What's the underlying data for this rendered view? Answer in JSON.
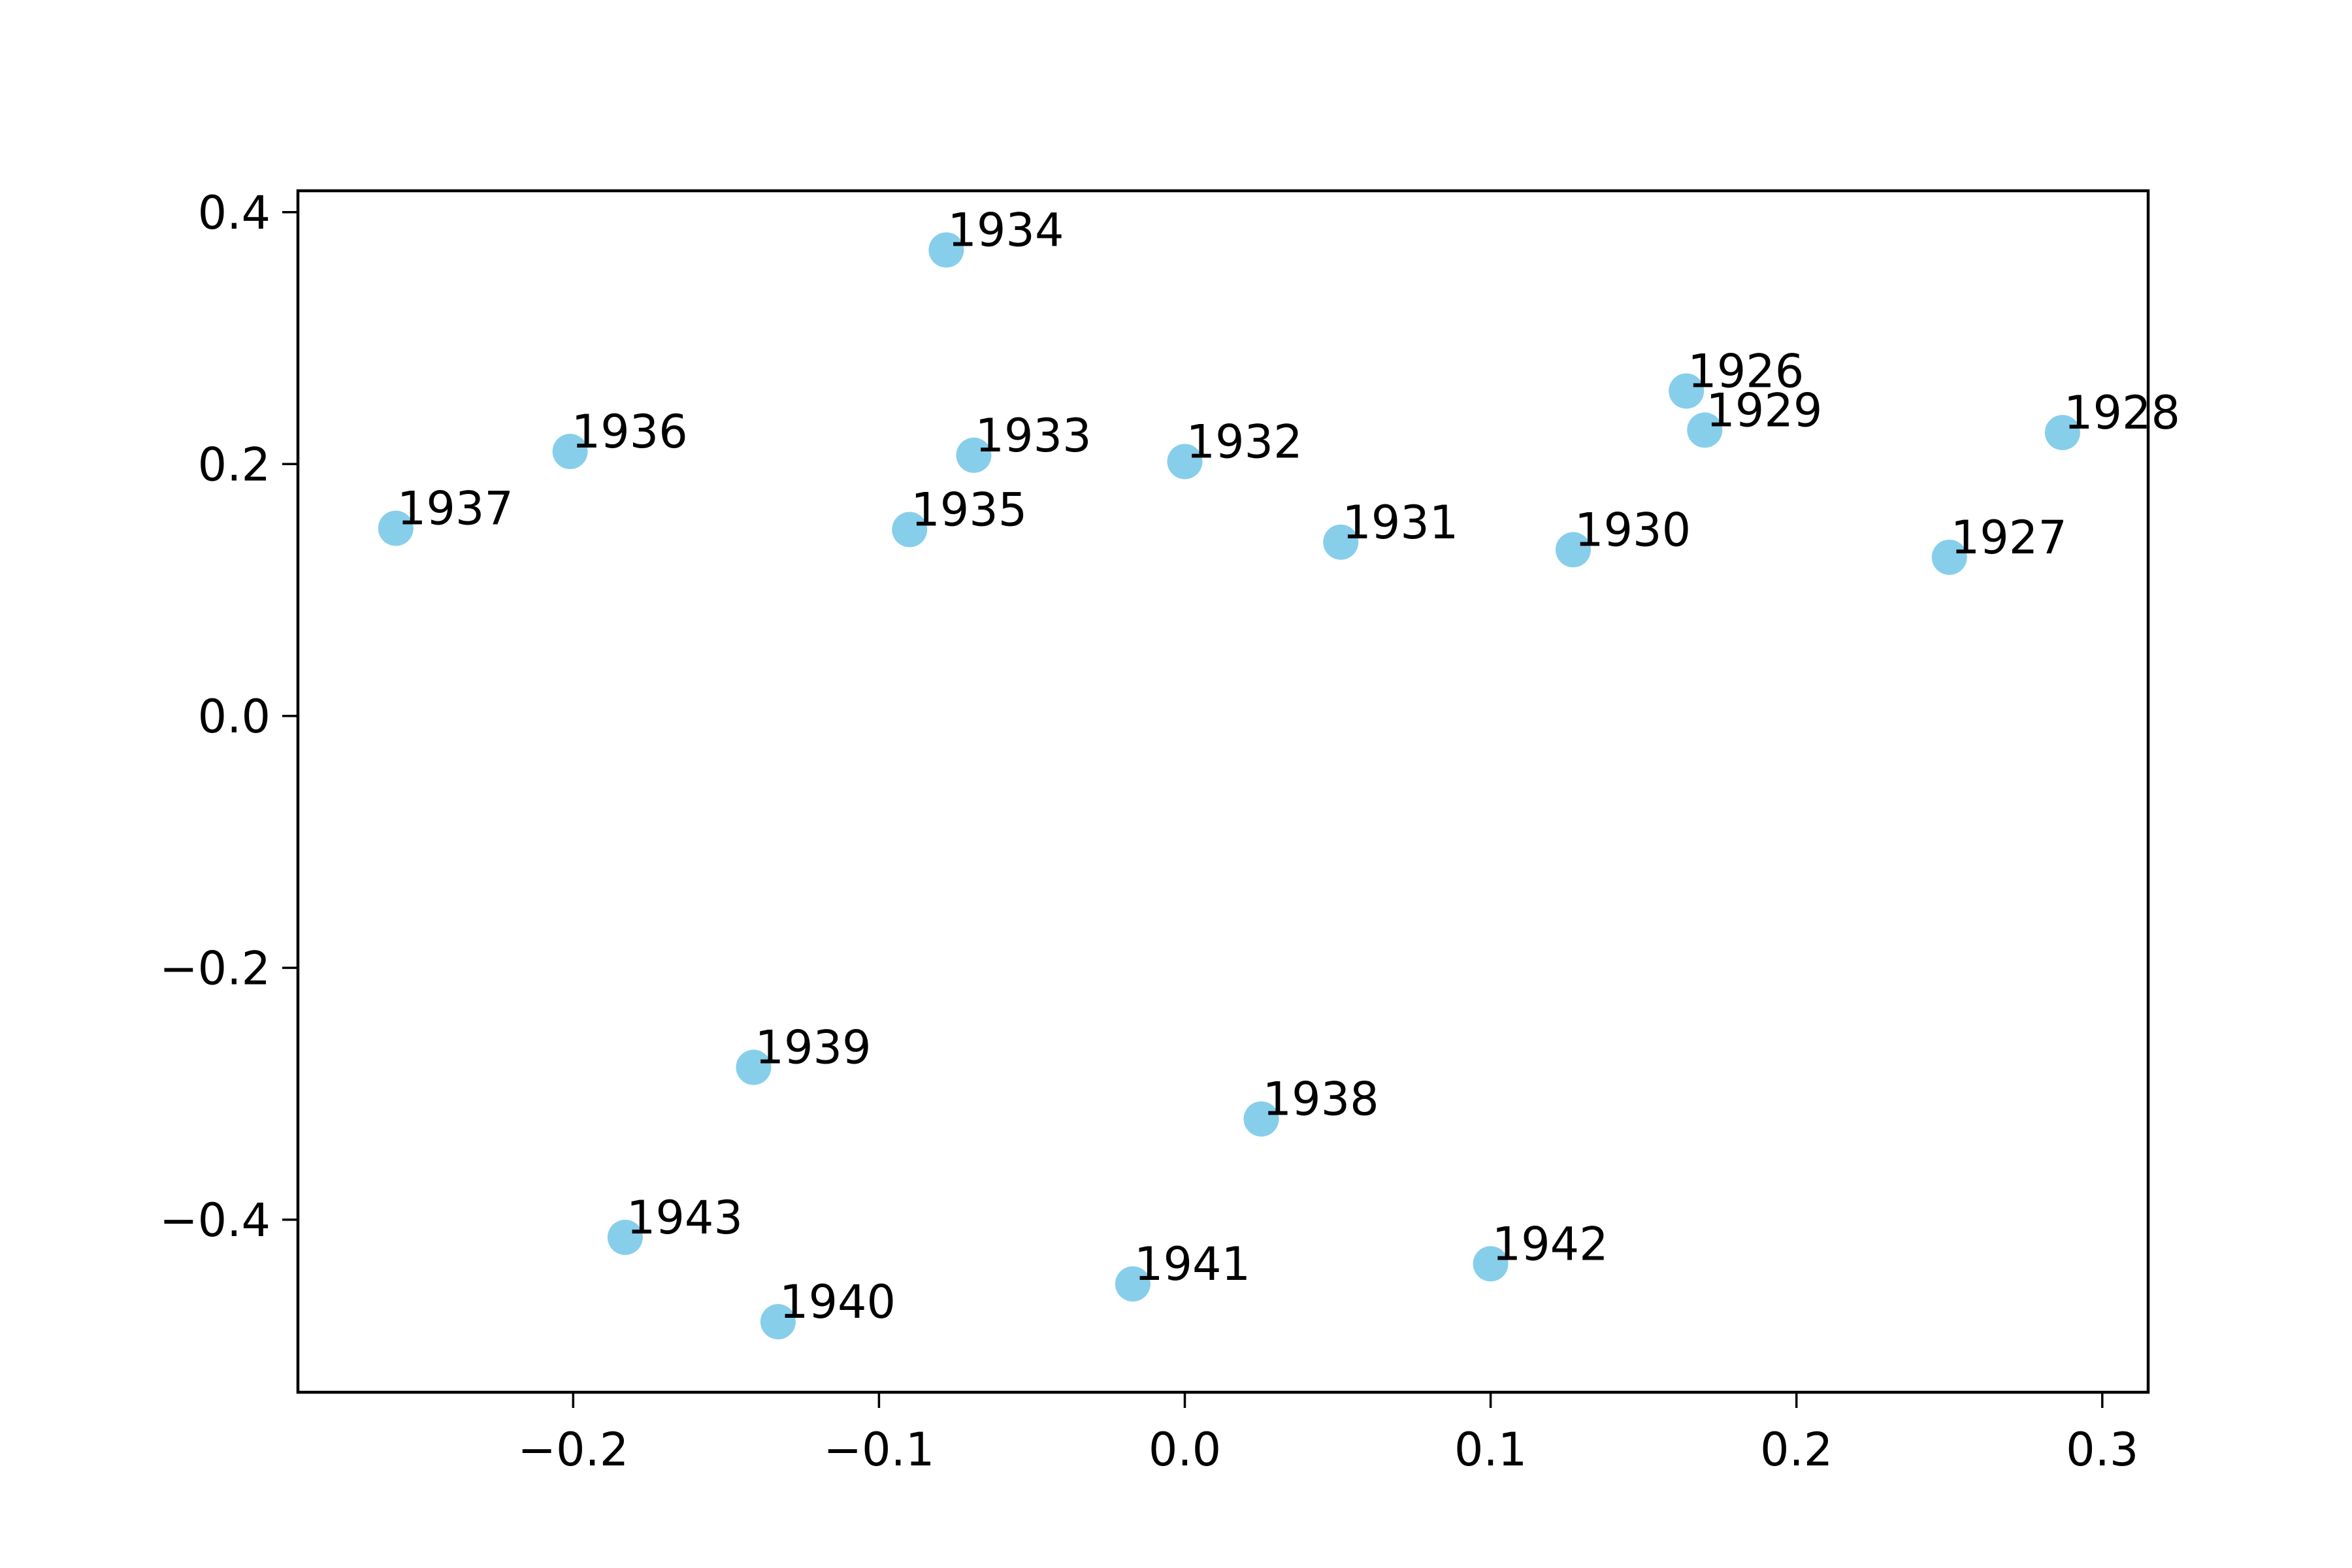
{
  "chart_data": {
    "type": "scatter",
    "title": "",
    "xlabel": "",
    "ylabel": "",
    "xlim": [
      -0.29,
      0.315
    ],
    "ylim": [
      -0.537,
      0.417
    ],
    "x_ticks": [
      -0.2,
      -0.1,
      0.0,
      0.1,
      0.2,
      0.3
    ],
    "x_tick_labels": [
      "−0.2",
      "−0.1",
      "0.0",
      "0.1",
      "0.2",
      "0.3"
    ],
    "y_ticks": [
      0.4,
      0.2,
      0.0,
      -0.2,
      -0.4
    ],
    "y_tick_labels": [
      "0.4",
      "0.2",
      "0.0",
      "−0.2",
      "−0.4"
    ],
    "grid": false,
    "legend": "none",
    "marker_color": "#87ceeb",
    "points": [
      {
        "label": "1926",
        "x": 0.164,
        "y": 0.258
      },
      {
        "label": "1927",
        "x": 0.25,
        "y": 0.126
      },
      {
        "label": "1928",
        "x": 0.287,
        "y": 0.225
      },
      {
        "label": "1929",
        "x": 0.17,
        "y": 0.227
      },
      {
        "label": "1930",
        "x": 0.127,
        "y": 0.132
      },
      {
        "label": "1931",
        "x": 0.051,
        "y": 0.138
      },
      {
        "label": "1932",
        "x": 0.0,
        "y": 0.202
      },
      {
        "label": "1933",
        "x": -0.069,
        "y": 0.207
      },
      {
        "label": "1934",
        "x": -0.078,
        "y": 0.37
      },
      {
        "label": "1935",
        "x": -0.09,
        "y": 0.148
      },
      {
        "label": "1936",
        "x": -0.201,
        "y": 0.21
      },
      {
        "label": "1937",
        "x": -0.258,
        "y": 0.149
      },
      {
        "label": "1938",
        "x": 0.025,
        "y": -0.32
      },
      {
        "label": "1939",
        "x": -0.141,
        "y": -0.279
      },
      {
        "label": "1940",
        "x": -0.133,
        "y": -0.481
      },
      {
        "label": "1941",
        "x": -0.017,
        "y": -0.451
      },
      {
        "label": "1942",
        "x": 0.1,
        "y": -0.435
      },
      {
        "label": "1943",
        "x": -0.183,
        "y": -0.414
      }
    ]
  }
}
